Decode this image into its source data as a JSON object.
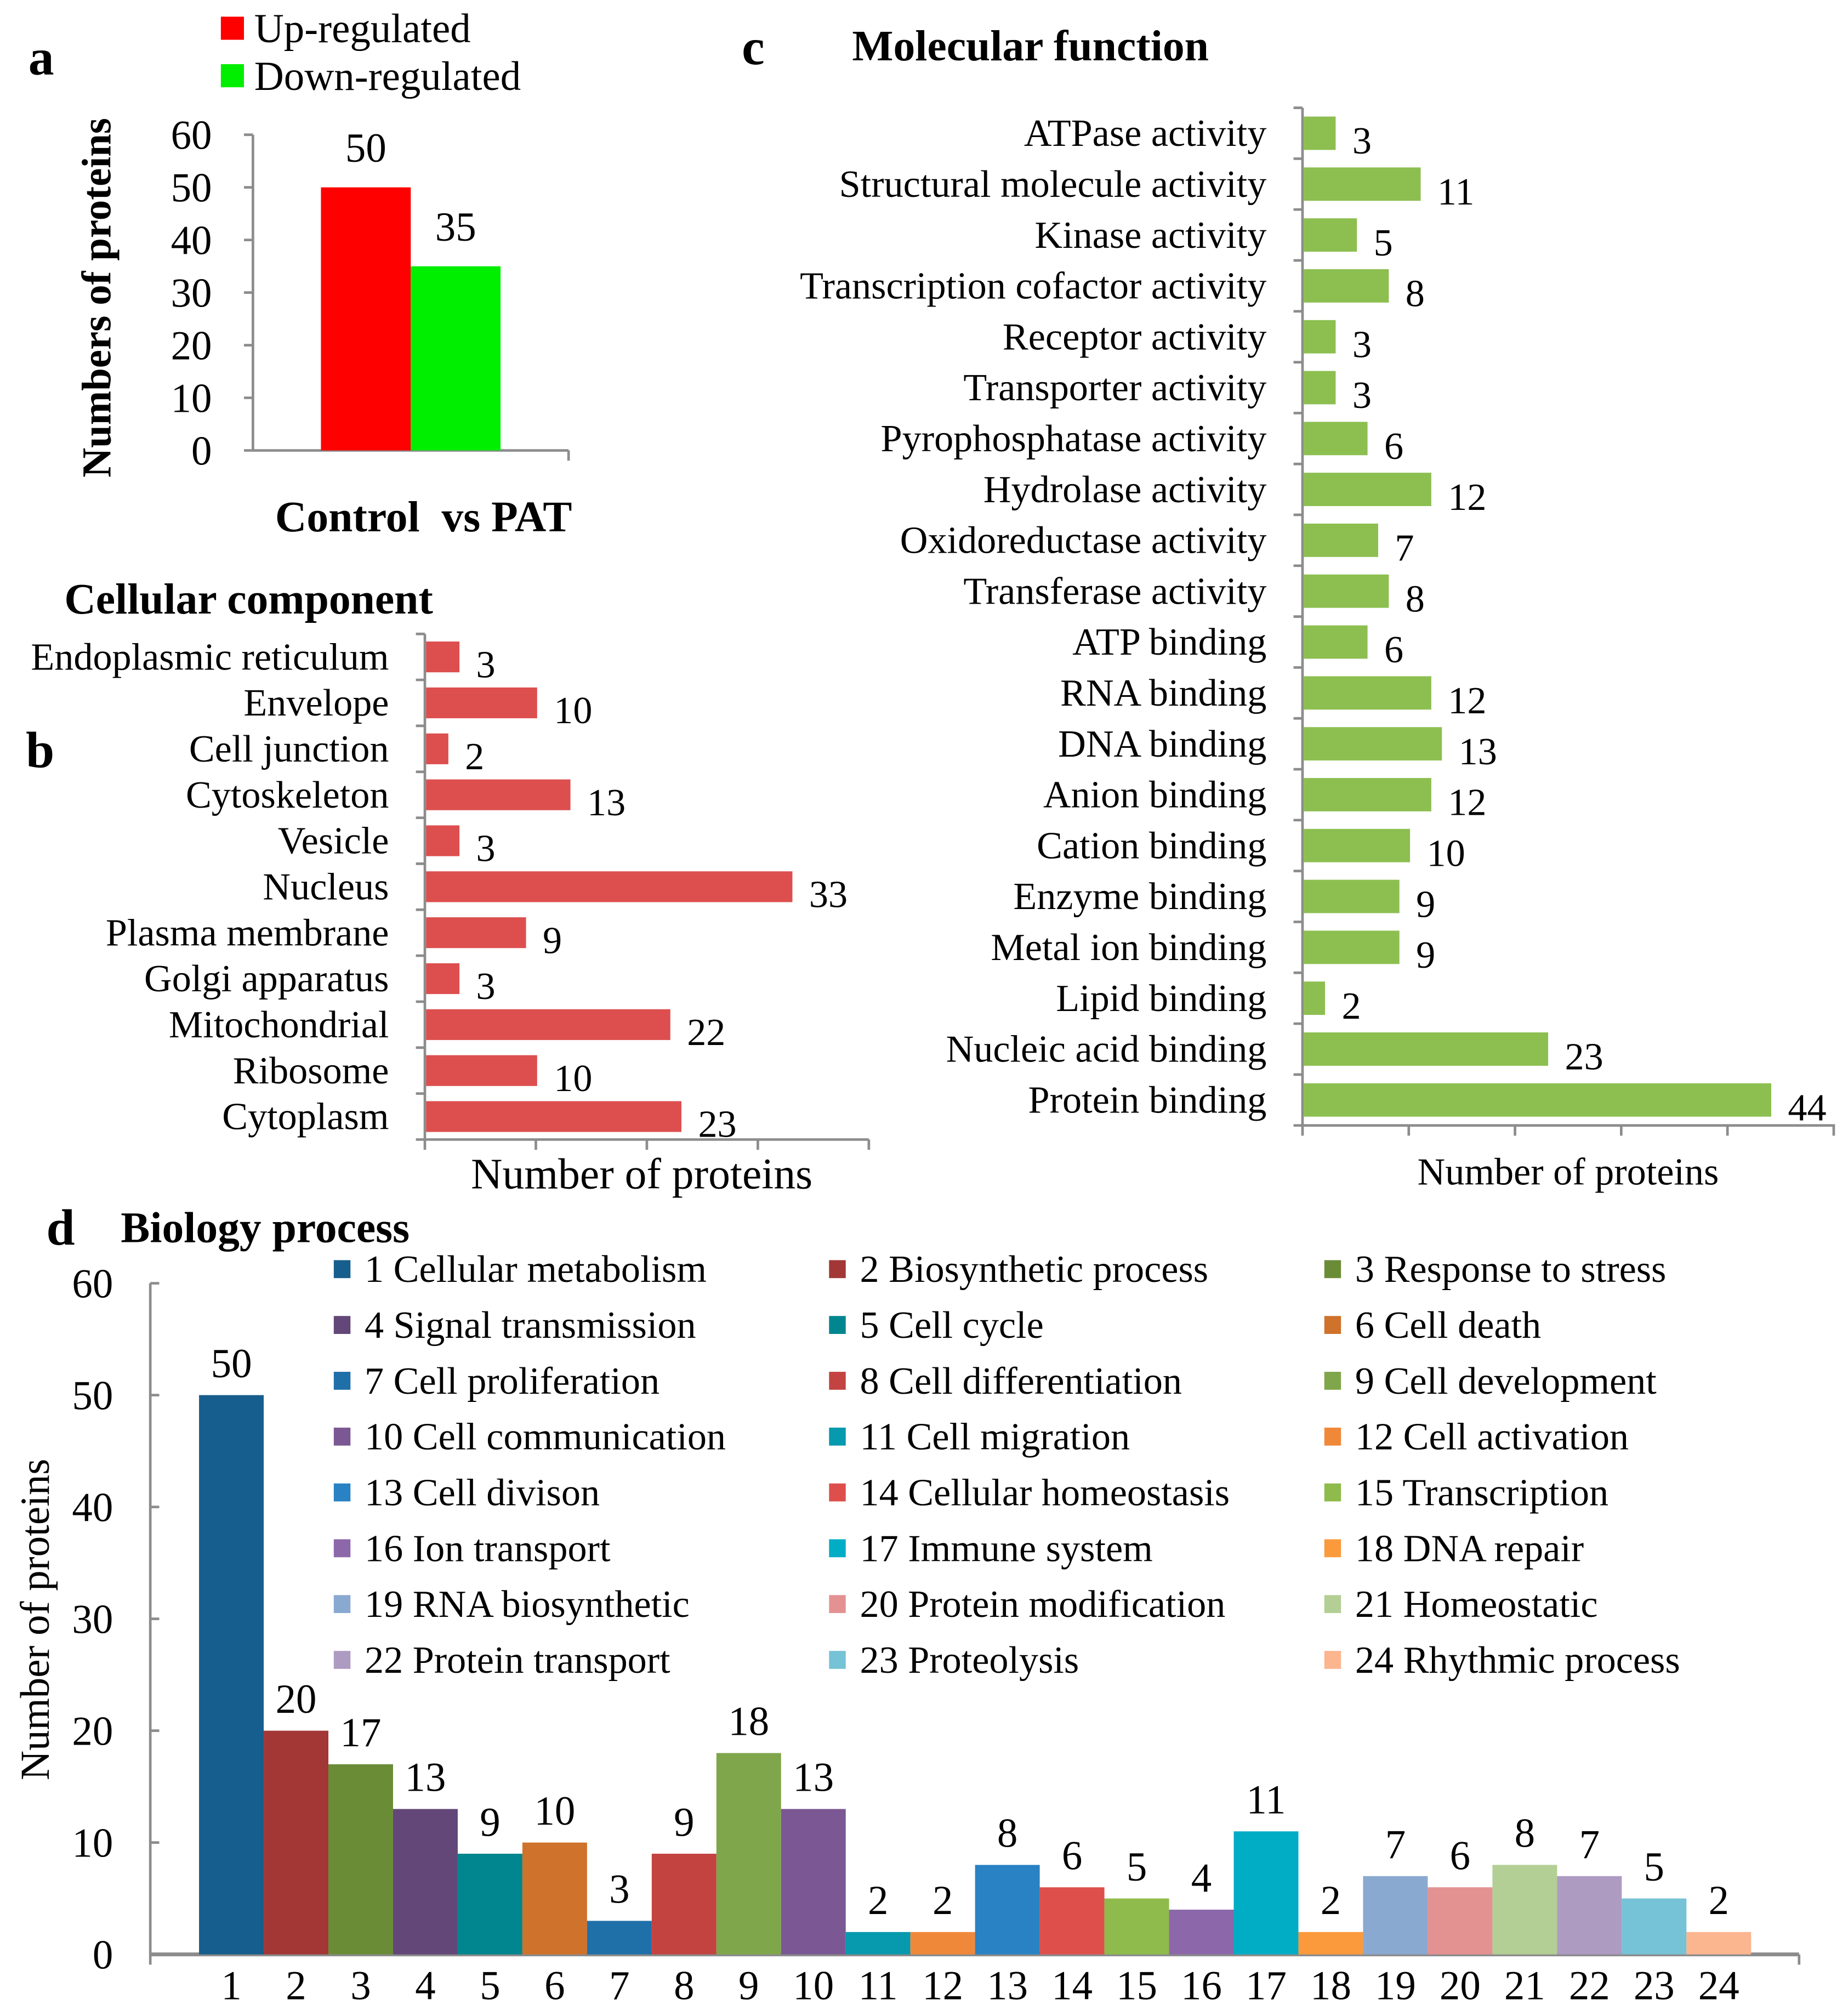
{
  "chart_data": [
    {
      "panel": "a",
      "type": "bar",
      "title": "",
      "xlabel": "Control  vs PAT",
      "ylabel": "Numbers of proteins",
      "ylim": [
        0,
        60
      ],
      "yticks": [
        0,
        10,
        20,
        30,
        40,
        50,
        60
      ],
      "legend": "top",
      "series": [
        {
          "name": "Up-regulated",
          "values": [
            50
          ],
          "color": "#ff0000"
        },
        {
          "name": "Down-regulated",
          "values": [
            35
          ],
          "color": "#00ee00"
        }
      ]
    },
    {
      "panel": "b",
      "type": "bar",
      "orientation": "horizontal",
      "title": "Cellular component",
      "xlabel": "Number of proteins",
      "xlim": [
        0,
        40
      ],
      "color": "#dd4f4f",
      "categories": [
        "Endoplasmic reticulum",
        "Envelope",
        "Cell junction",
        "Cytoskeleton",
        "Vesicle",
        "Nucleus",
        "Plasma membrane",
        "Golgi apparatus",
        "Mitochondrial",
        "Ribosome",
        "Cytoplasm"
      ],
      "values": [
        3,
        10,
        2,
        13,
        3,
        33,
        9,
        3,
        22,
        10,
        23
      ]
    },
    {
      "panel": "c",
      "type": "bar",
      "orientation": "horizontal",
      "title": "Molecular function",
      "xlabel": "Number of proteins",
      "xlim": [
        0,
        50
      ],
      "color": "#8cbf50",
      "categories": [
        "ATPase activity",
        "Structural molecule activity",
        "Kinase activity",
        "Transcription cofactor activity",
        "Receptor activity",
        "Transporter activity",
        "Pyrophosphatase activity",
        "Hydrolase activity",
        "Oxidoreductase activity",
        "Transferase activity",
        "ATP binding",
        "RNA binding",
        "DNA binding",
        "Anion binding",
        "Cation binding",
        "Enzyme binding",
        "Metal ion binding",
        "Lipid binding",
        "Nucleic acid binding",
        "Protein binding"
      ],
      "values": [
        3,
        11,
        5,
        8,
        3,
        3,
        6,
        12,
        7,
        8,
        6,
        12,
        13,
        12,
        10,
        9,
        9,
        2,
        23,
        44
      ]
    },
    {
      "panel": "d",
      "type": "bar",
      "title": "Biology process",
      "ylabel": "Number of proteins",
      "ylim": [
        0,
        60
      ],
      "yticks": [
        0,
        10,
        20,
        30,
        40,
        50,
        60
      ],
      "legend": "top-right",
      "categories": [
        "1",
        "2",
        "3",
        "4",
        "5",
        "6",
        "7",
        "8",
        "9",
        "10",
        "11",
        "12",
        "13",
        "14",
        "15",
        "16",
        "17",
        "18",
        "19",
        "20",
        "21",
        "22",
        "23",
        "24"
      ],
      "legend_labels": [
        "1 Cellular metabolism",
        "2 Biosynthetic process",
        "3 Response to stress",
        "4 Signal transmission",
        "5 Cell cycle",
        "6 Cell death",
        "7 Cell proliferation",
        "8 Cell differentiation",
        "9 Cell development",
        "10 Cell communication",
        "11 Cell migration",
        "12 Cell activation",
        "13 Cell divison",
        "14 Cellular homeostasis",
        "15 Transcription",
        "16 Ion transport",
        "17 Immune system",
        "18 DNA repair",
        "19 RNA biosynthetic",
        "20 Protein modification",
        "21 Homeostatic",
        "22 Protein transport",
        "23 Proteolysis",
        "24 Rhythmic process"
      ],
      "values": [
        50,
        20,
        17,
        13,
        9,
        10,
        3,
        9,
        18,
        13,
        2,
        2,
        8,
        6,
        5,
        4,
        11,
        2,
        7,
        6,
        8,
        7,
        5,
        2
      ],
      "colors": [
        "#165e8d",
        "#a23735",
        "#6b8c37",
        "#634778",
        "#01868f",
        "#cf722b",
        "#1f6fa9",
        "#c34341",
        "#7fa64a",
        "#7b5793",
        "#0799ad",
        "#f0883a",
        "#2882c3",
        "#de4f4c",
        "#8ebb4c",
        "#8c67a9",
        "#00adc5",
        "#fb9a3d",
        "#8aa9d1",
        "#e49192",
        "#b3cf95",
        "#ae9bc2",
        "#76c2d6",
        "#fbb58f"
      ]
    }
  ],
  "panel_labels": {
    "a": "a",
    "b": "b",
    "c": "c",
    "d": "d"
  }
}
